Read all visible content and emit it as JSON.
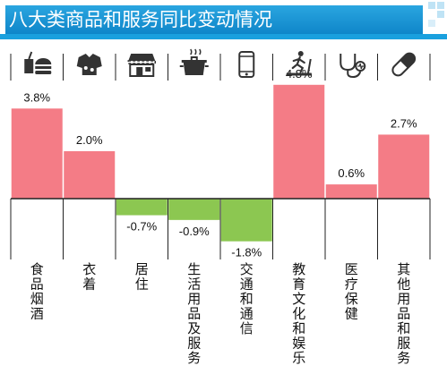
{
  "title": "八大类商品和服务同比变动情况",
  "colors": {
    "header": "#1591d2",
    "positive": "#f47c86",
    "negative": "#8cc751",
    "icon": "#333333"
  },
  "chart_data": {
    "type": "bar",
    "title": "八大类商品和服务同比变动情况",
    "categories": [
      "食品烟酒",
      "衣着",
      "居住",
      "生活用品及服务",
      "交通和通信",
      "教育文化和娱乐",
      "医疗保健",
      "其他用品和服务"
    ],
    "icons": [
      "food-icon",
      "clothing-icon",
      "housing-icon",
      "household-goods-icon",
      "phone-icon",
      "treadmill-icon",
      "stethoscope-icon",
      "pill-icon"
    ],
    "values": [
      3.8,
      2.0,
      -0.7,
      -0.9,
      -1.8,
      4.8,
      0.6,
      2.7
    ],
    "labels": [
      "3.8%",
      "2.0%",
      "-0.7%",
      "-0.9%",
      "-1.8%",
      "4.8%",
      "0.6%",
      "2.7%"
    ],
    "ylim": [
      -2.5,
      4.8
    ],
    "grid": false,
    "legend": "none"
  }
}
